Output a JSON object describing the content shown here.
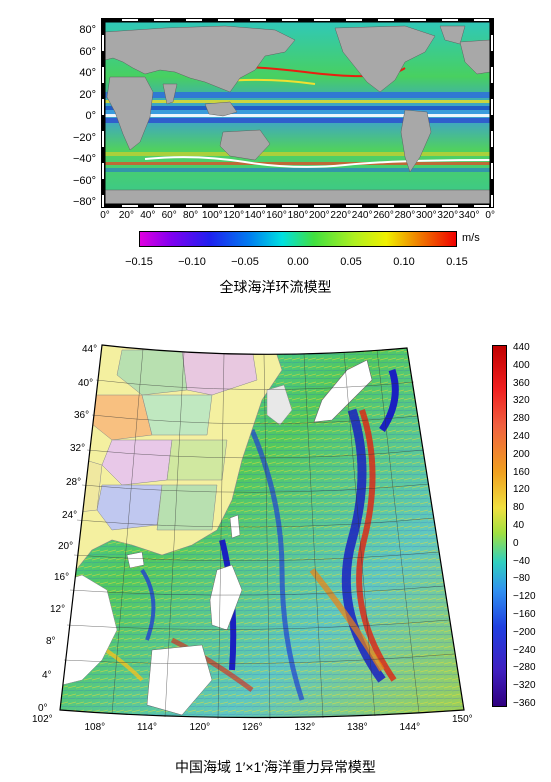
{
  "top_map": {
    "lat_labels": [
      "80°",
      "60°",
      "40°",
      "20°",
      "0°",
      "−20°",
      "−40°",
      "−60°",
      "−80°"
    ],
    "lon_labels": [
      "0°",
      "20°",
      "40°",
      "60°",
      "80°",
      "100°",
      "120°",
      "140°",
      "160°",
      "180°",
      "200°",
      "220°",
      "240°",
      "260°",
      "280°",
      "300°",
      "320°",
      "340°",
      "0°"
    ],
    "colorbar_unit": "m/s",
    "colorbar_ticks": [
      "−0.15",
      "−0.10",
      "−0.05",
      "0.00",
      "0.05",
      "0.10",
      "0.15"
    ],
    "caption": "全球海洋环流模型"
  },
  "bottom_map": {
    "lat_labels": [
      "44°",
      "40°",
      "36°",
      "32°",
      "28°",
      "24°",
      "20°",
      "16°",
      "12°",
      "8°",
      "4°",
      "0°"
    ],
    "lon_labels": [
      "102°",
      "108°",
      "114°",
      "120°",
      "126°",
      "132°",
      "138°",
      "144°",
      "150°"
    ],
    "colorbar_ticks": [
      "440",
      "400",
      "360",
      "320",
      "280",
      "240",
      "200",
      "160",
      "120",
      "80",
      "40",
      "0",
      "−40",
      "−80",
      "−120",
      "−160",
      "−200",
      "−240",
      "−280",
      "−320",
      "−360"
    ],
    "caption": "中国海域 1′×1′海洋重力异常模型"
  },
  "colors": {
    "land_gray": "#a8a8a8",
    "ocean_green": "#3cc85a",
    "ocean_blue": "#2050e0",
    "current_red": "#e82010",
    "current_yellow": "#f0e030",
    "cyan": "#30d8d8"
  }
}
